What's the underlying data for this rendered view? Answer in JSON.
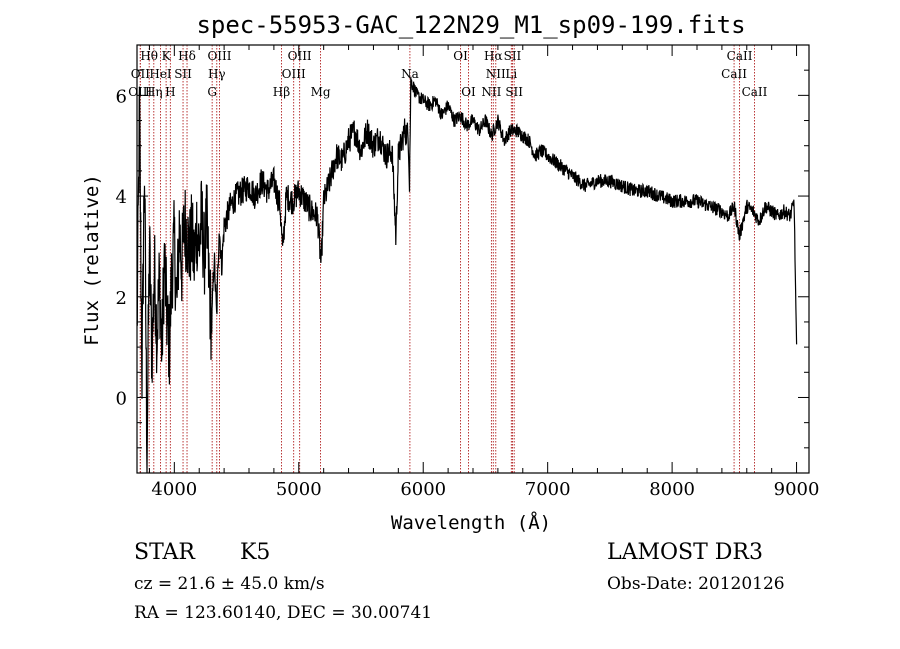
{
  "chart_data": {
    "type": "line",
    "title": "spec-55953-GAC_122N29_M1_sp09-199.fits",
    "xlabel": "Wavelength (Å)",
    "ylabel": "Flux (relative)",
    "xlim": [
      3700,
      9100
    ],
    "ylim": [
      -1.5,
      7.0
    ],
    "x_ticks": [
      4000,
      5000,
      6000,
      7000,
      8000,
      9000
    ],
    "y_ticks": [
      0,
      2,
      4,
      6
    ],
    "x_tick_labels": [
      "4000",
      "5000",
      "6000",
      "7000",
      "8000",
      "9000"
    ],
    "y_tick_labels": [
      "0",
      "2",
      "4",
      "6"
    ],
    "grid": false,
    "line_color": "#000000",
    "marker_color": "#b22222",
    "spectrum": {
      "name": "",
      "x": [
        3700,
        3720,
        3740,
        3760,
        3780,
        3800,
        3820,
        3840,
        3860,
        3880,
        3900,
        3920,
        3940,
        3960,
        3980,
        4000,
        4020,
        4040,
        4060,
        4080,
        4100,
        4120,
        4140,
        4160,
        4180,
        4200,
        4220,
        4240,
        4260,
        4280,
        4300,
        4320,
        4340,
        4360,
        4380,
        4400,
        4450,
        4500,
        4550,
        4600,
        4650,
        4700,
        4750,
        4800,
        4850,
        4870,
        4900,
        4950,
        5000,
        5050,
        5100,
        5150,
        5180,
        5200,
        5250,
        5300,
        5350,
        5400,
        5450,
        5500,
        5550,
        5600,
        5650,
        5700,
        5750,
        5780,
        5800,
        5850,
        5880,
        5890,
        5900,
        5950,
        6000,
        6050,
        6100,
        6150,
        6200,
        6250,
        6300,
        6350,
        6400,
        6450,
        6500,
        6550,
        6600,
        6650,
        6700,
        6750,
        6800,
        6850,
        6900,
        6950,
        7000,
        7100,
        7200,
        7300,
        7400,
        7500,
        7600,
        7700,
        7800,
        7900,
        8000,
        8100,
        8200,
        8300,
        8400,
        8450,
        8500,
        8540,
        8600,
        8650,
        8700,
        8750,
        8800,
        8850,
        8900,
        8950,
        8980,
        9000
      ],
      "y": [
        1.2,
        5.8,
        0.5,
        4.6,
        -1.0,
        3.0,
        0.8,
        2.6,
        1.2,
        2.4,
        0.9,
        2.8,
        1.6,
        1.0,
        2.5,
        3.1,
        1.8,
        3.4,
        2.6,
        3.5,
        3.3,
        2.9,
        3.2,
        2.7,
        3.4,
        3.0,
        3.6,
        2.8,
        3.5,
        2.2,
        1.4,
        2.8,
        1.6,
        3.4,
        2.6,
        3.4,
        3.8,
        4.0,
        4.1,
        4.2,
        4.0,
        4.3,
        4.1,
        4.3,
        3.8,
        2.9,
        4.0,
        3.9,
        4.1,
        3.9,
        3.7,
        3.6,
        2.6,
        3.9,
        4.3,
        4.8,
        4.7,
        5.1,
        5.3,
        4.9,
        5.3,
        5.0,
        5.2,
        4.8,
        4.9,
        3.2,
        4.8,
        5.3,
        5.2,
        4.3,
        6.3,
        6.0,
        5.9,
        5.8,
        5.9,
        5.6,
        5.8,
        5.5,
        5.6,
        5.4,
        5.5,
        5.3,
        5.5,
        5.2,
        5.5,
        5.1,
        5.3,
        5.3,
        5.2,
        5.1,
        4.8,
        4.9,
        4.8,
        4.6,
        4.4,
        4.2,
        4.3,
        4.3,
        4.2,
        4.1,
        4.1,
        4.0,
        3.9,
        3.9,
        3.9,
        3.8,
        3.7,
        3.6,
        3.8,
        3.2,
        3.8,
        3.7,
        3.5,
        3.8,
        3.7,
        3.6,
        3.7,
        3.6,
        3.9,
        1.0
      ]
    },
    "lines": [
      {
        "label": "Hθ",
        "wavelength": 3798,
        "row": 0
      },
      {
        "label": "K",
        "wavelength": 3934,
        "row": 0
      },
      {
        "label": "Hδ",
        "wavelength": 4102,
        "row": 0
      },
      {
        "label": "OIII",
        "wavelength": 4363,
        "row": 0
      },
      {
        "label": "OIII",
        "wavelength": 5007,
        "row": 0
      },
      {
        "label": "OI",
        "wavelength": 6300,
        "row": 0
      },
      {
        "label": "Hα",
        "wavelength": 6563,
        "row": 0
      },
      {
        "label": "SII",
        "wavelength": 6717,
        "row": 0
      },
      {
        "label": "CaII",
        "wavelength": 8542,
        "row": 0
      },
      {
        "label": "OII",
        "wavelength": 3727,
        "row": 1
      },
      {
        "label": "HeI",
        "wavelength": 3889,
        "row": 1
      },
      {
        "label": "SII",
        "wavelength": 4070,
        "row": 1
      },
      {
        "label": "Hγ",
        "wavelength": 4341,
        "row": 1
      },
      {
        "label": "OIII",
        "wavelength": 4959,
        "row": 1
      },
      {
        "label": "Na",
        "wavelength": 5893,
        "row": 1
      },
      {
        "label": "NII",
        "wavelength": 6583,
        "row": 1
      },
      {
        "label": "Li",
        "wavelength": 6708,
        "row": 1
      },
      {
        "label": "CaII",
        "wavelength": 8498,
        "row": 1
      },
      {
        "label": "OIII",
        "wavelength": 3726,
        "row": 2
      },
      {
        "label": "Hη",
        "wavelength": 3835,
        "row": 2
      },
      {
        "label": "H",
        "wavelength": 3968,
        "row": 2
      },
      {
        "label": "G",
        "wavelength": 4304,
        "row": 2
      },
      {
        "label": "Hβ",
        "wavelength": 4861,
        "row": 2
      },
      {
        "label": "Mg",
        "wavelength": 5175,
        "row": 2
      },
      {
        "label": "OI",
        "wavelength": 6364,
        "row": 2
      },
      {
        "label": "NII",
        "wavelength": 6548,
        "row": 2
      },
      {
        "label": "SII",
        "wavelength": 6731,
        "row": 2
      },
      {
        "label": "CaII",
        "wavelength": 8662,
        "row": 2
      }
    ]
  },
  "info": {
    "class": "STAR",
    "subclass": "K5",
    "survey": "LAMOST DR3",
    "cz": "cz = 21.6 ± 45.0 km/s",
    "obs_date": "Obs-Date: 20120126",
    "radec": "RA = 123.60140, DEC =  30.00741"
  }
}
